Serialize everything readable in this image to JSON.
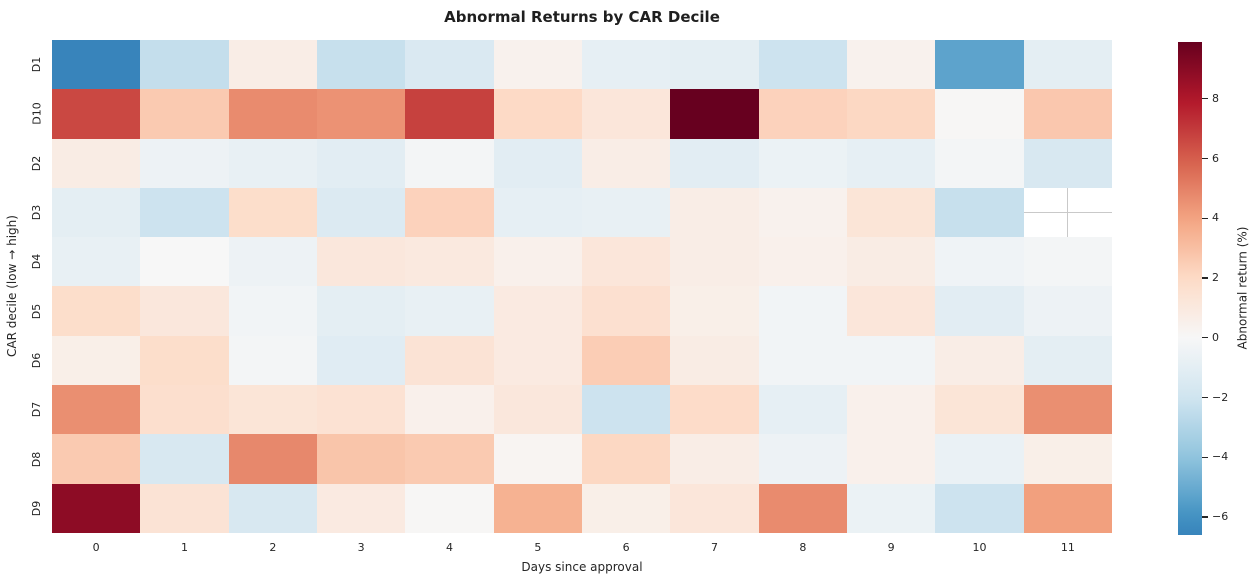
{
  "chart_data": {
    "type": "heatmap",
    "title": "Abnormal Returns by CAR Decile",
    "xlabel": "Days since approval",
    "ylabel": "CAR decile (low → high)",
    "colorbar_label": "Abnormal return (%)",
    "x_categories": [
      "0",
      "1",
      "2",
      "3",
      "4",
      "5",
      "6",
      "7",
      "8",
      "9",
      "10",
      "11"
    ],
    "y_categories": [
      "D1",
      "D10",
      "D2",
      "D3",
      "D4",
      "D5",
      "D6",
      "D7",
      "D8",
      "D9"
    ],
    "values": [
      [
        -6.6,
        -2.4,
        0.7,
        -2.3,
        -1.5,
        0.4,
        -0.9,
        -1.0,
        -2.1,
        0.4,
        -5.3,
        -1.0
      ],
      [
        6.6,
        2.6,
        4.7,
        4.5,
        6.8,
        2.0,
        1.2,
        9.9,
        2.3,
        2.1,
        0.1,
        2.7
      ],
      [
        0.8,
        -0.5,
        -0.8,
        -1.1,
        -0.2,
        -1.1,
        0.7,
        -1.1,
        -0.6,
        -0.9,
        -0.2,
        -1.6
      ],
      [
        -1.0,
        -2.1,
        1.8,
        -1.4,
        2.3,
        -0.9,
        -0.8,
        0.7,
        0.4,
        1.3,
        -2.3,
        null
      ],
      [
        -0.8,
        0.0,
        -0.5,
        1.1,
        1.0,
        0.5,
        1.2,
        0.7,
        0.5,
        0.8,
        -0.4,
        -0.2
      ],
      [
        1.8,
        1.1,
        -0.3,
        -1.0,
        -0.8,
        0.9,
        1.6,
        0.6,
        -0.3,
        1.2,
        -1.1,
        -0.5
      ],
      [
        0.6,
        1.8,
        -0.2,
        -1.2,
        1.4,
        0.9,
        2.5,
        0.8,
        -0.3,
        -0.3,
        0.7,
        -1.0
      ],
      [
        4.6,
        1.7,
        1.3,
        1.5,
        0.5,
        1.1,
        -2.1,
        1.9,
        -0.9,
        0.5,
        1.3,
        4.6
      ],
      [
        2.6,
        -1.6,
        4.8,
        2.8,
        2.6,
        0.2,
        2.1,
        0.7,
        -0.5,
        0.5,
        -0.7,
        0.6
      ],
      [
        8.9,
        1.4,
        -1.6,
        0.9,
        0.1,
        3.5,
        0.6,
        1.2,
        4.7,
        -0.6,
        -2.1,
        4.1
      ]
    ],
    "missing_cell": {
      "row": "D3",
      "x": "11"
    },
    "vmin": -6.6,
    "vmax": 9.9,
    "center": 0,
    "colormap": "RdBu_r",
    "colorbar_ticks": [
      {
        "label": "8",
        "value": 8
      },
      {
        "label": "6",
        "value": 6
      },
      {
        "label": "4",
        "value": 4
      },
      {
        "label": "2",
        "value": 2
      },
      {
        "label": "0",
        "value": 0
      },
      {
        "label": "−2",
        "value": -2
      },
      {
        "label": "−4",
        "value": -4
      },
      {
        "label": "−6",
        "value": -6
      }
    ],
    "legend_position": "right-colorbar",
    "grid": false
  },
  "style_colors": {
    "rdbu_r_stops": [
      "#053061",
      "#2166ac",
      "#4393c3",
      "#92c5de",
      "#d1e5f0",
      "#f7f7f7",
      "#fddbc7",
      "#f4a582",
      "#d6604d",
      "#b2182b",
      "#67001f"
    ],
    "background": "#ffffff",
    "text": "#262626",
    "missing_gridline": "#c9c9c9"
  }
}
